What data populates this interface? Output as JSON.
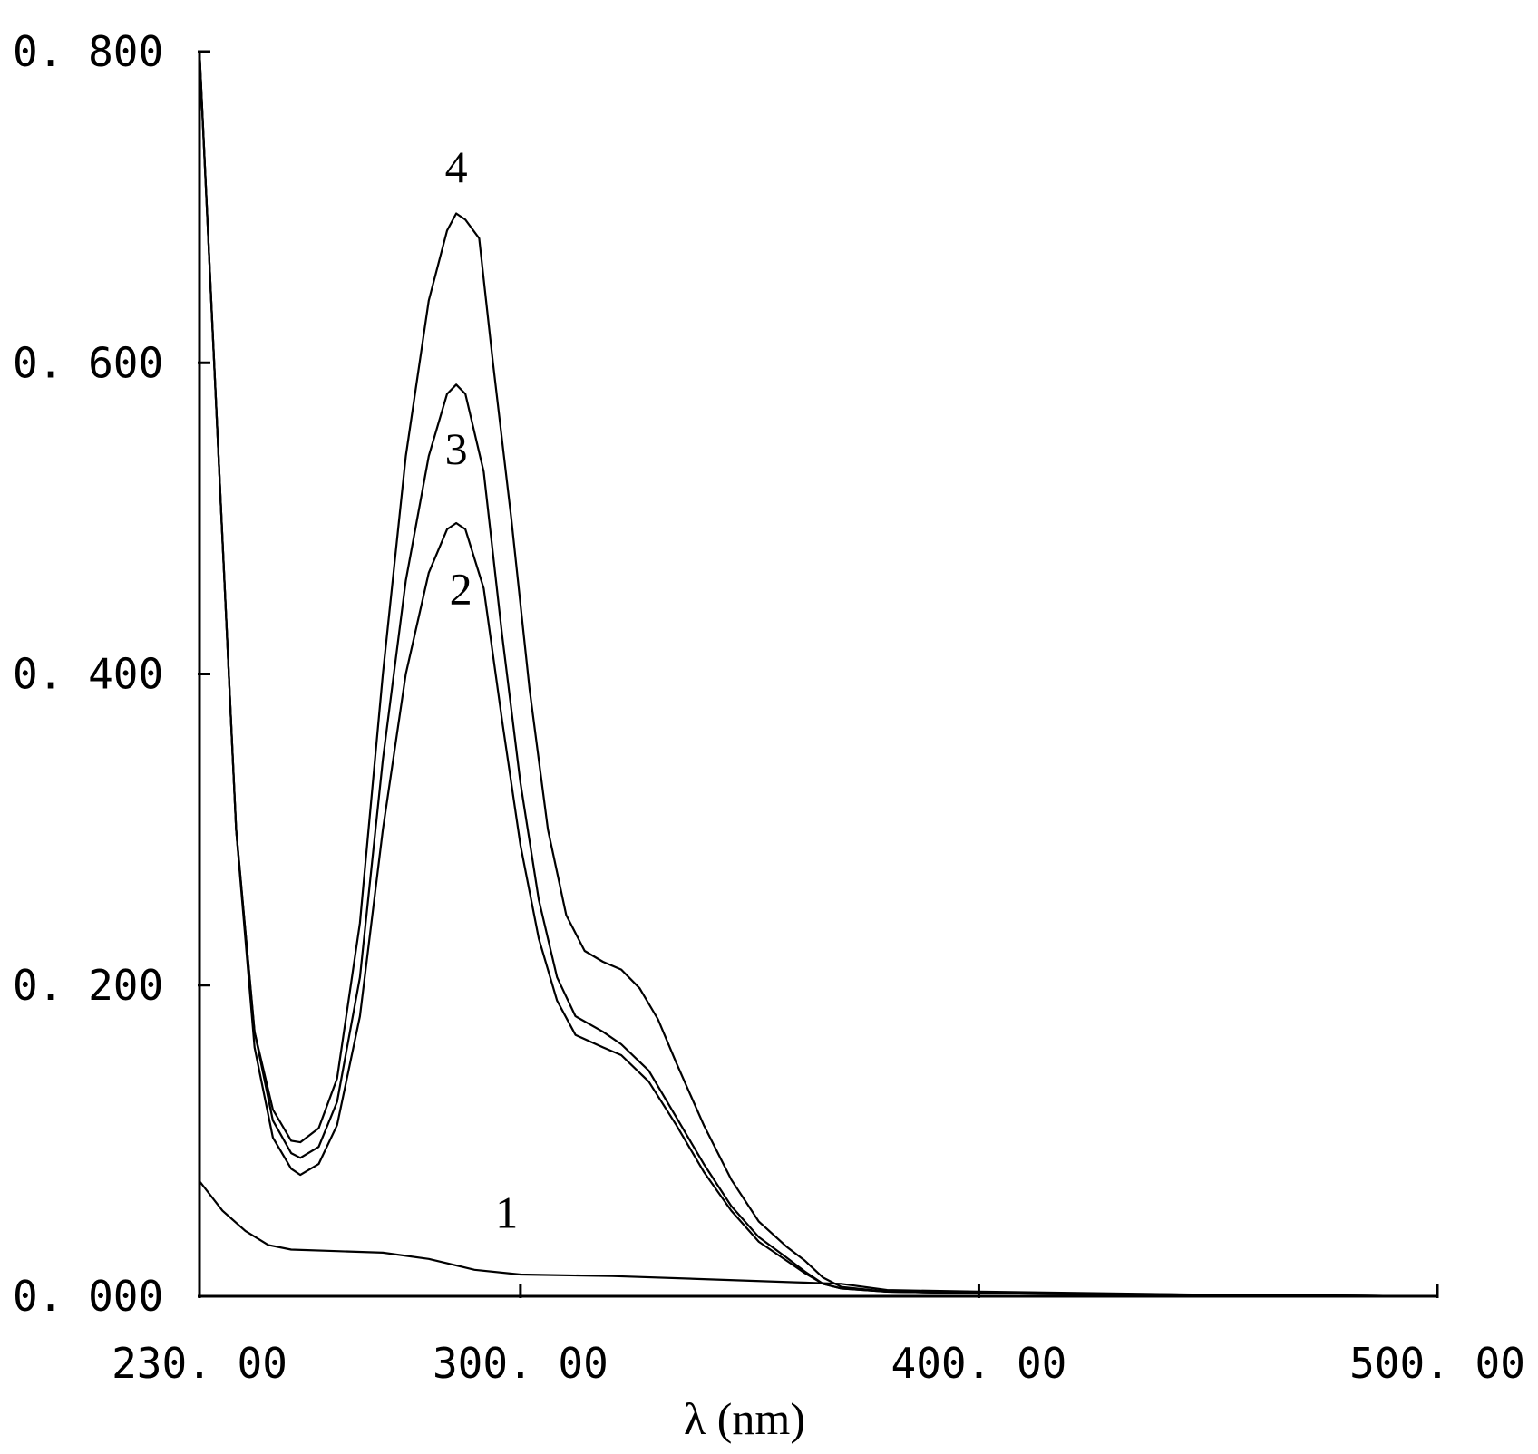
{
  "chart_data": {
    "type": "line",
    "title": "",
    "xlabel": "λ (nm)",
    "ylabel": "",
    "xlim": [
      230,
      500
    ],
    "ylim": [
      0.0,
      0.8
    ],
    "grid": false,
    "x_ticks": [
      {
        "value": 230,
        "label": "230. 00"
      },
      {
        "value": 300,
        "label": "300. 00"
      },
      {
        "value": 400,
        "label": "400. 00"
      },
      {
        "value": 500,
        "label": "500. 00"
      }
    ],
    "y_ticks": [
      {
        "value": 0.0,
        "label": "0. 000"
      },
      {
        "value": 0.2,
        "label": "0. 200"
      },
      {
        "value": 0.4,
        "label": "0. 400"
      },
      {
        "value": 0.6,
        "label": "0. 600"
      },
      {
        "value": 0.8,
        "label": "0. 800"
      }
    ],
    "series": [
      {
        "label": "1",
        "points": [
          [
            230,
            0.074
          ],
          [
            235,
            0.055
          ],
          [
            240,
            0.042
          ],
          [
            245,
            0.033
          ],
          [
            250,
            0.03
          ],
          [
            260,
            0.029
          ],
          [
            270,
            0.028
          ],
          [
            280,
            0.024
          ],
          [
            290,
            0.017
          ],
          [
            300,
            0.014
          ],
          [
            320,
            0.013
          ],
          [
            340,
            0.011
          ],
          [
            360,
            0.009
          ],
          [
            370,
            0.008
          ],
          [
            380,
            0.004
          ],
          [
            400,
            0.003
          ],
          [
            450,
            0.001
          ],
          [
            500,
            0.0
          ]
        ]
      },
      {
        "label": "2",
        "points": [
          [
            230,
            0.8
          ],
          [
            234,
            0.55
          ],
          [
            238,
            0.3
          ],
          [
            242,
            0.16
          ],
          [
            246,
            0.102
          ],
          [
            250,
            0.082
          ],
          [
            252,
            0.078
          ],
          [
            256,
            0.085
          ],
          [
            260,
            0.11
          ],
          [
            265,
            0.18
          ],
          [
            270,
            0.3
          ],
          [
            275,
            0.4
          ],
          [
            280,
            0.465
          ],
          [
            284,
            0.493
          ],
          [
            286,
            0.497
          ],
          [
            288,
            0.493
          ],
          [
            292,
            0.455
          ],
          [
            296,
            0.37
          ],
          [
            300,
            0.29
          ],
          [
            304,
            0.23
          ],
          [
            308,
            0.19
          ],
          [
            312,
            0.168
          ],
          [
            318,
            0.16
          ],
          [
            322,
            0.155
          ],
          [
            328,
            0.138
          ],
          [
            334,
            0.11
          ],
          [
            340,
            0.08
          ],
          [
            346,
            0.055
          ],
          [
            352,
            0.035
          ],
          [
            358,
            0.023
          ],
          [
            362,
            0.015
          ],
          [
            366,
            0.008
          ],
          [
            370,
            0.005
          ],
          [
            380,
            0.003
          ],
          [
            400,
            0.002
          ],
          [
            450,
            0.001
          ],
          [
            500,
            0.0
          ]
        ]
      },
      {
        "label": "3",
        "points": [
          [
            230,
            0.8
          ],
          [
            234,
            0.55
          ],
          [
            238,
            0.3
          ],
          [
            242,
            0.17
          ],
          [
            246,
            0.113
          ],
          [
            250,
            0.092
          ],
          [
            252,
            0.089
          ],
          [
            256,
            0.096
          ],
          [
            260,
            0.125
          ],
          [
            265,
            0.205
          ],
          [
            270,
            0.345
          ],
          [
            275,
            0.46
          ],
          [
            280,
            0.54
          ],
          [
            284,
            0.58
          ],
          [
            286,
            0.586
          ],
          [
            288,
            0.58
          ],
          [
            292,
            0.53
          ],
          [
            296,
            0.425
          ],
          [
            300,
            0.33
          ],
          [
            304,
            0.255
          ],
          [
            308,
            0.205
          ],
          [
            312,
            0.18
          ],
          [
            318,
            0.17
          ],
          [
            322,
            0.162
          ],
          [
            328,
            0.145
          ],
          [
            334,
            0.115
          ],
          [
            340,
            0.085
          ],
          [
            346,
            0.058
          ],
          [
            352,
            0.038
          ],
          [
            358,
            0.025
          ],
          [
            362,
            0.016
          ],
          [
            366,
            0.008
          ],
          [
            370,
            0.005
          ],
          [
            380,
            0.003
          ],
          [
            400,
            0.002
          ],
          [
            450,
            0.001
          ],
          [
            500,
            0.0
          ]
        ]
      },
      {
        "label": "4",
        "points": [
          [
            230,
            0.8
          ],
          [
            234,
            0.55
          ],
          [
            238,
            0.3
          ],
          [
            242,
            0.17
          ],
          [
            246,
            0.12
          ],
          [
            250,
            0.1
          ],
          [
            252,
            0.099
          ],
          [
            256,
            0.108
          ],
          [
            260,
            0.14
          ],
          [
            265,
            0.24
          ],
          [
            270,
            0.4
          ],
          [
            275,
            0.54
          ],
          [
            280,
            0.64
          ],
          [
            284,
            0.685
          ],
          [
            286,
            0.696
          ],
          [
            288,
            0.692
          ],
          [
            291,
            0.68
          ],
          [
            294,
            0.6
          ],
          [
            298,
            0.5
          ],
          [
            302,
            0.39
          ],
          [
            306,
            0.3
          ],
          [
            310,
            0.245
          ],
          [
            314,
            0.222
          ],
          [
            318,
            0.215
          ],
          [
            322,
            0.21
          ],
          [
            326,
            0.198
          ],
          [
            330,
            0.178
          ],
          [
            334,
            0.15
          ],
          [
            340,
            0.11
          ],
          [
            346,
            0.075
          ],
          [
            352,
            0.048
          ],
          [
            358,
            0.032
          ],
          [
            362,
            0.023
          ],
          [
            366,
            0.012
          ],
          [
            370,
            0.006
          ],
          [
            380,
            0.003
          ],
          [
            400,
            0.002
          ],
          [
            450,
            0.001
          ],
          [
            500,
            0.0
          ]
        ]
      }
    ],
    "curve_labels": [
      {
        "text": "1",
        "x": 297,
        "y": 0.044
      },
      {
        "text": "2",
        "x": 287,
        "y": 0.445
      },
      {
        "text": "3",
        "x": 286,
        "y": 0.535
      },
      {
        "text": "4",
        "x": 286,
        "y": 0.716
      }
    ]
  }
}
